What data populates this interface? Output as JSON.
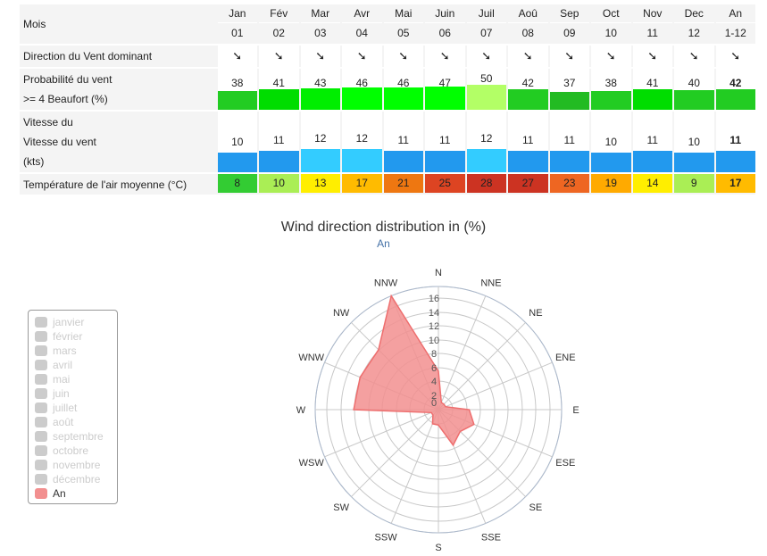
{
  "table": {
    "month_header_label": "Mois",
    "months": [
      {
        "name": "Jan",
        "num": "01"
      },
      {
        "name": "Fév",
        "num": "02"
      },
      {
        "name": "Mar",
        "num": "03"
      },
      {
        "name": "Avr",
        "num": "04"
      },
      {
        "name": "Mai",
        "num": "05"
      },
      {
        "name": "Juin",
        "num": "06"
      },
      {
        "name": "Juil",
        "num": "07"
      },
      {
        "name": "Aoû",
        "num": "08"
      },
      {
        "name": "Sep",
        "num": "09"
      },
      {
        "name": "Oct",
        "num": "10"
      },
      {
        "name": "Nov",
        "num": "11"
      },
      {
        "name": "Dec",
        "num": "12"
      },
      {
        "name": "An",
        "num": "1-12"
      }
    ],
    "direction_label": "Direction du Vent dominant",
    "direction_arrow": "➘",
    "probability_label_1": "Probabilité du vent",
    "probability_label_2": ">= 4 Beaufort (%)",
    "probability_values": [
      "38",
      "41",
      "43",
      "46",
      "46",
      "47",
      "50",
      "42",
      "37",
      "38",
      "41",
      "40",
      "42"
    ],
    "probability_colors": [
      "#22cc22",
      "#00dd00",
      "#00ee00",
      "#00ff00",
      "#00ff00",
      "#00ff00",
      "#b3ff66",
      "#22cc22",
      "#22bb22",
      "#22cc22",
      "#00dd00",
      "#22cc22",
      "#22cc22"
    ],
    "speed_label_1": "Vitesse du",
    "speed_label_2": "Vitesse du vent",
    "speed_label_3": "(kts)",
    "speed_values": [
      "10",
      "11",
      "12",
      "12",
      "11",
      "11",
      "12",
      "11",
      "11",
      "10",
      "11",
      "10",
      "11"
    ],
    "speed_colors": [
      "#2299ee",
      "#2299ee",
      "#33ccff",
      "#33ccff",
      "#2299ee",
      "#2299ee",
      "#33ccff",
      "#2299ee",
      "#2299ee",
      "#2299ee",
      "#2299ee",
      "#2299ee",
      "#2299ee"
    ],
    "temp_label": "Température de l'air moyenne (°C)",
    "temp_values": [
      "8",
      "10",
      "13",
      "17",
      "21",
      "25",
      "28",
      "27",
      "23",
      "19",
      "14",
      "9",
      "17"
    ],
    "temp_colors": [
      "#33cc33",
      "#aaee55",
      "#ffee00",
      "#ffbb00",
      "#ee7711",
      "#dd4422",
      "#cc3322",
      "#cc3322",
      "#ee6622",
      "#ffaa00",
      "#ffee00",
      "#aaee55",
      "#ffbb00"
    ]
  },
  "chart": {
    "title": "Wind direction distribution in (%)",
    "subtitle": "An"
  },
  "legend": {
    "items": [
      "janvier",
      "février",
      "mars",
      "avril",
      "mai",
      "juin",
      "juillet",
      "août",
      "septembre",
      "octobre",
      "novembre",
      "décembre",
      "An"
    ],
    "active_color": "#f28f8f",
    "inactive_color": "#cccccc"
  },
  "chart_data": {
    "type": "radar",
    "directions": [
      "N",
      "NNE",
      "NE",
      "ENE",
      "E",
      "ESE",
      "SE",
      "SSE",
      "S",
      "SSW",
      "SW",
      "WSW",
      "W",
      "WNW",
      "NW",
      "NNW"
    ],
    "rticks": [
      "0",
      "2",
      "4",
      "6",
      "8",
      "10",
      "12",
      "14",
      "16"
    ],
    "rmax": 16,
    "series": [
      {
        "name": "An",
        "color": "#f28f8f",
        "values": [
          5,
          1,
          1,
          1,
          4,
          5,
          4,
          5,
          2,
          2,
          1,
          1,
          11,
          11,
          11,
          16
        ]
      }
    ]
  }
}
